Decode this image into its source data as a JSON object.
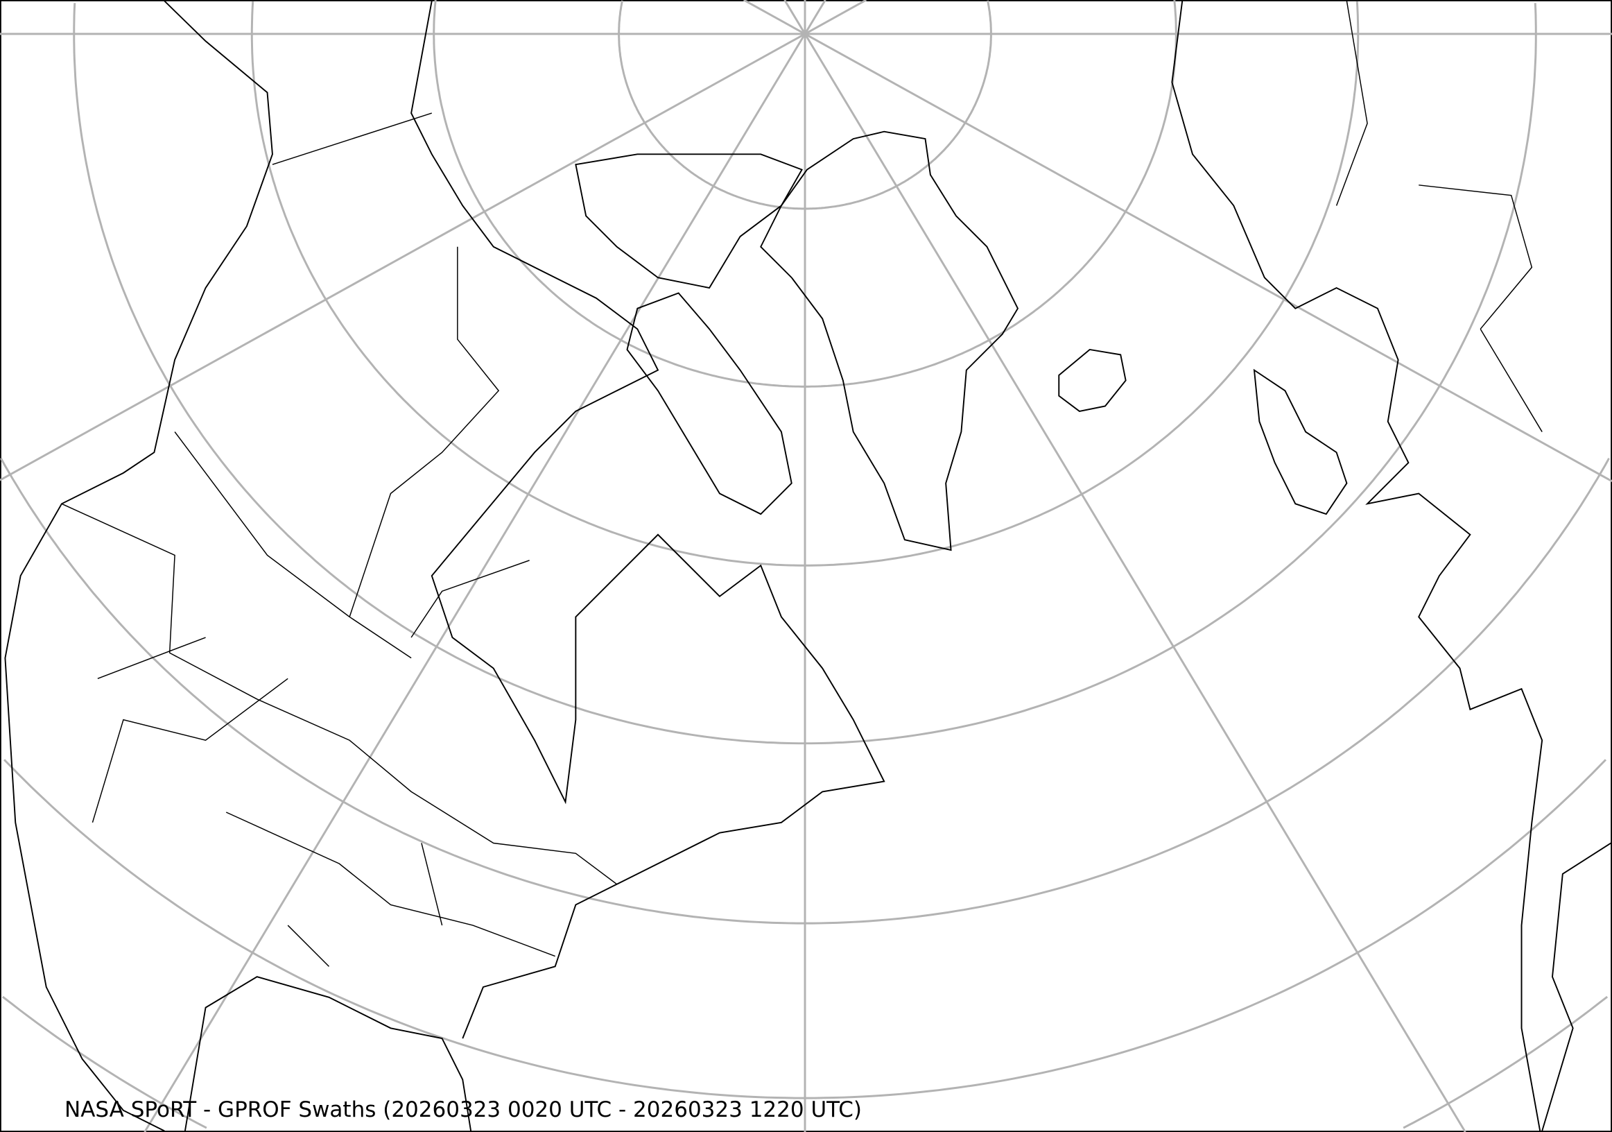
{
  "map": {
    "title": "NASA SPoRT - GPROF Swaths (20260323 0020 UTC - 20260323 1220 UTC)",
    "projection": "polar stereographic",
    "graticule_color": "#b3b3b3",
    "coastline_color": "#000000",
    "background_color": "#ffffff"
  }
}
